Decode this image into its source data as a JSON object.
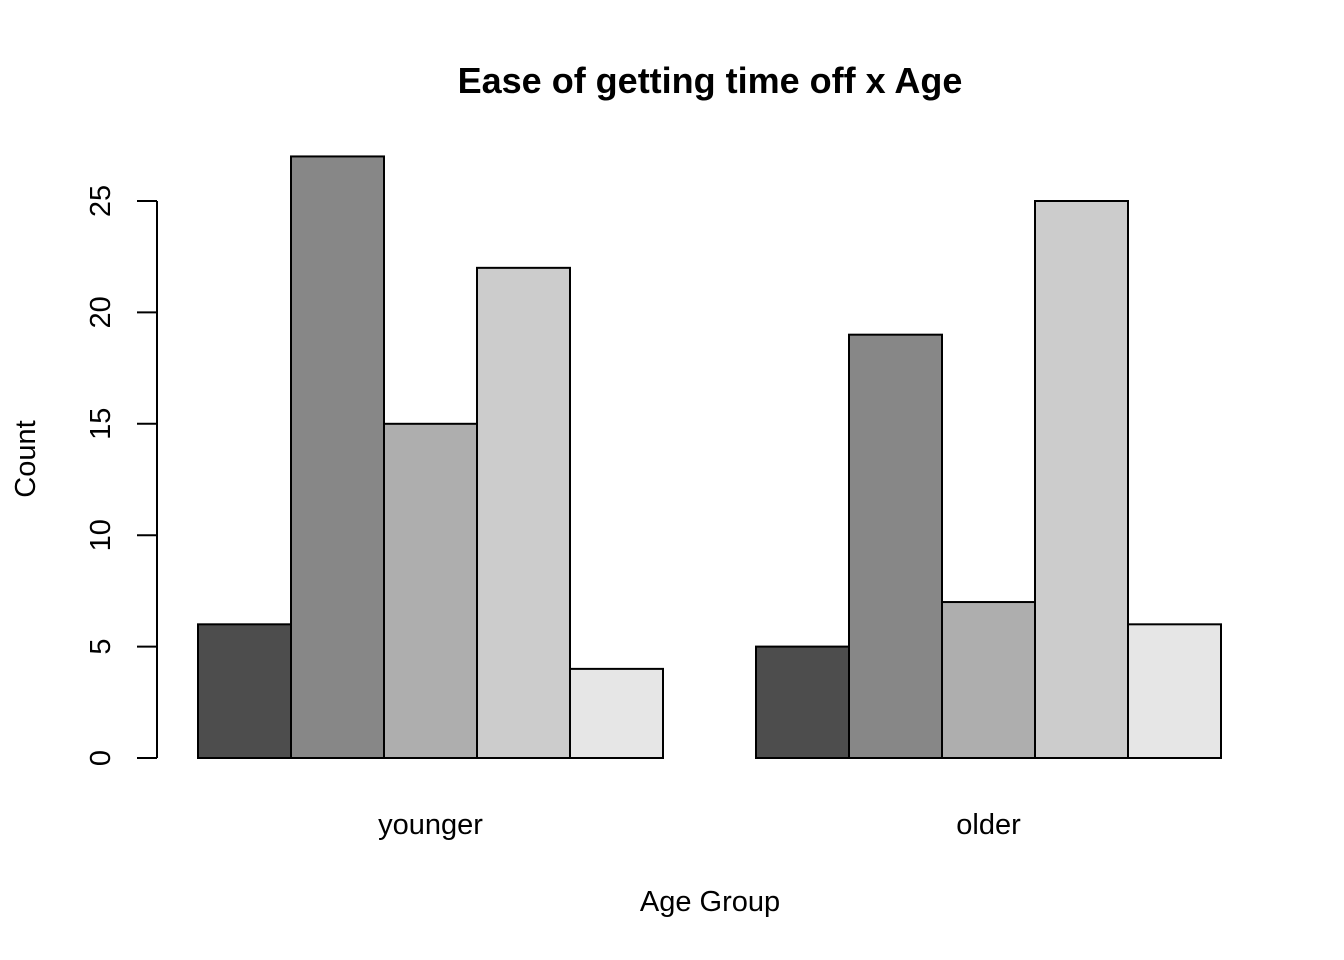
{
  "chart_data": {
    "type": "bar",
    "mode": "grouped",
    "title": "Ease of getting time off x Age",
    "xlabel": "Age Group",
    "ylabel": "Count",
    "categories": [
      "younger",
      "older"
    ],
    "ylim": [
      0,
      27
    ],
    "yticks": [
      0,
      5,
      10,
      15,
      20,
      25
    ],
    "grid": false,
    "legend": "none",
    "series": [
      {
        "values": [
          6,
          5
        ],
        "color": "#4d4d4d"
      },
      {
        "values": [
          27,
          19
        ],
        "color": "#878787"
      },
      {
        "values": [
          15,
          7
        ],
        "color": "#aeaeae"
      },
      {
        "values": [
          22,
          25
        ],
        "color": "#cccccc"
      },
      {
        "values": [
          4,
          6
        ],
        "color": "#e6e6e6"
      }
    ]
  }
}
